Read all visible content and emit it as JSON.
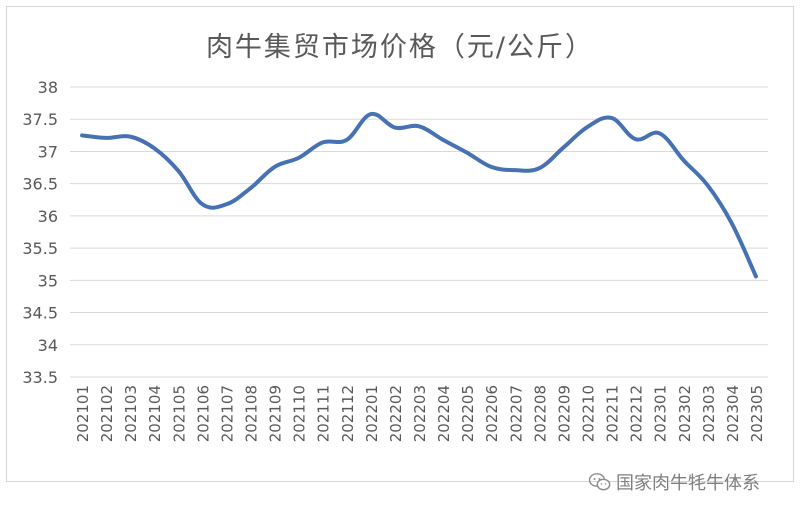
{
  "chart_data": {
    "type": "line",
    "title": "肉牛集贸市场价格（元/公斤）",
    "categories": [
      "202101",
      "202102",
      "202103",
      "202104",
      "202105",
      "202106",
      "202107",
      "202108",
      "202109",
      "202110",
      "202111",
      "202112",
      "202201",
      "202202",
      "202203",
      "202204",
      "202205",
      "202206",
      "202207",
      "202208",
      "202209",
      "202210",
      "202211",
      "202212",
      "202301",
      "202302",
      "202303",
      "202304",
      "202305"
    ],
    "series": [
      {
        "values": [
          37.25,
          37.21,
          37.23,
          37.05,
          36.7,
          36.18,
          36.18,
          36.43,
          36.76,
          36.9,
          37.14,
          37.18,
          37.58,
          37.37,
          37.39,
          37.18,
          36.98,
          36.76,
          36.71,
          36.74,
          37.06,
          37.38,
          37.52,
          37.19,
          37.28,
          36.86,
          36.47,
          35.88,
          35.06
        ],
        "color": "#4672b4"
      }
    ],
    "xlabel": "",
    "ylabel": "",
    "ylim": [
      33.5,
      38
    ],
    "yticks": [
      "33.5",
      "34",
      "34.5",
      "35",
      "35.5",
      "36",
      "36.5",
      "37",
      "37.5",
      "38"
    ],
    "grid": true,
    "legend": "none"
  },
  "watermark": {
    "text": "国家肉牛牦牛体系",
    "icon": "wechat-icon"
  }
}
